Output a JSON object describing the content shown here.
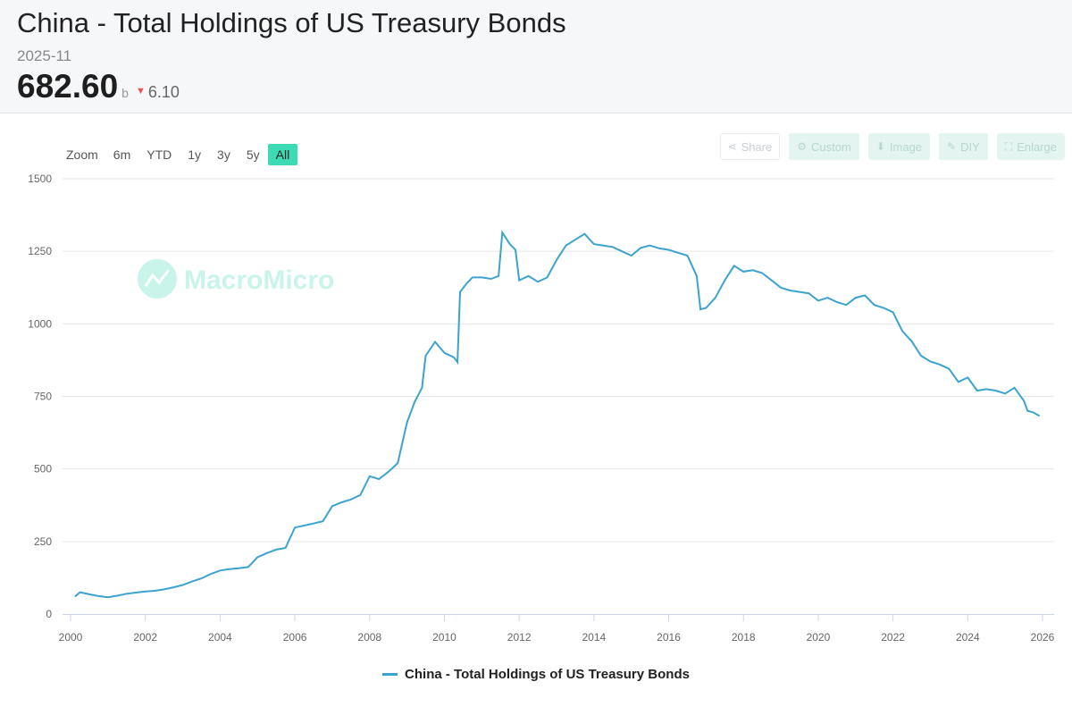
{
  "header": {
    "title": "China - Total Holdings of US Treasury Bonds",
    "date": "2025-11",
    "value": "682.60",
    "unit": "b",
    "change": "6.10",
    "change_direction": "down"
  },
  "zoom": {
    "label": "Zoom",
    "options": [
      "6m",
      "YTD",
      "1y",
      "3y",
      "5y",
      "All"
    ],
    "active": "All"
  },
  "toolbar": {
    "share": "Share",
    "custom": "Custom",
    "image": "Image",
    "diy": "DIY",
    "enlarge": "Enlarge"
  },
  "watermark": "MacroMicro",
  "colors": {
    "line": "#3ca3cf",
    "accent": "#3ddbb5",
    "down": "#e55353",
    "grid": "#e6e6e6"
  },
  "chart_data": {
    "type": "line",
    "title": "China - Total Holdings of US Treasury Bonds",
    "xlabel": "",
    "ylabel": "",
    "xlim": [
      2000,
      2026.2
    ],
    "ylim": [
      0,
      1500
    ],
    "yticks": [
      0,
      250,
      500,
      750,
      1000,
      1250,
      1500
    ],
    "xticks": [
      2000,
      2002,
      2004,
      2006,
      2008,
      2010,
      2012,
      2014,
      2016,
      2018,
      2020,
      2022,
      2024,
      2026
    ],
    "legend": "bottom-center",
    "series": [
      {
        "name": "China - Total Holdings of US Treasury Bonds",
        "points": [
          [
            2000.12,
            60
          ],
          [
            2000.25,
            75
          ],
          [
            2000.5,
            68
          ],
          [
            2000.75,
            62
          ],
          [
            2001.0,
            58
          ],
          [
            2001.25,
            63
          ],
          [
            2001.5,
            70
          ],
          [
            2001.75,
            74
          ],
          [
            2002.0,
            78
          ],
          [
            2002.25,
            80
          ],
          [
            2002.5,
            85
          ],
          [
            2002.75,
            92
          ],
          [
            2003.0,
            100
          ],
          [
            2003.25,
            112
          ],
          [
            2003.5,
            123
          ],
          [
            2003.75,
            138
          ],
          [
            2004.0,
            150
          ],
          [
            2004.25,
            155
          ],
          [
            2004.5,
            158
          ],
          [
            2004.75,
            162
          ],
          [
            2005.0,
            196
          ],
          [
            2005.25,
            210
          ],
          [
            2005.5,
            222
          ],
          [
            2005.75,
            228
          ],
          [
            2006.0,
            298
          ],
          [
            2006.25,
            305
          ],
          [
            2006.5,
            312
          ],
          [
            2006.75,
            320
          ],
          [
            2007.0,
            372
          ],
          [
            2007.25,
            385
          ],
          [
            2007.5,
            395
          ],
          [
            2007.75,
            410
          ],
          [
            2008.0,
            475
          ],
          [
            2008.25,
            465
          ],
          [
            2008.5,
            490
          ],
          [
            2008.75,
            520
          ],
          [
            2009.0,
            660
          ],
          [
            2009.2,
            730
          ],
          [
            2009.4,
            780
          ],
          [
            2009.5,
            890
          ],
          [
            2009.75,
            938
          ],
          [
            2010.0,
            900
          ],
          [
            2010.25,
            885
          ],
          [
            2010.35,
            868
          ],
          [
            2010.42,
            1110
          ],
          [
            2010.6,
            1140
          ],
          [
            2010.75,
            1160
          ],
          [
            2011.0,
            1160
          ],
          [
            2011.25,
            1155
          ],
          [
            2011.45,
            1165
          ],
          [
            2011.55,
            1315
          ],
          [
            2011.75,
            1275
          ],
          [
            2011.9,
            1255
          ],
          [
            2012.0,
            1150
          ],
          [
            2012.25,
            1165
          ],
          [
            2012.5,
            1145
          ],
          [
            2012.75,
            1160
          ],
          [
            2013.0,
            1220
          ],
          [
            2013.25,
            1270
          ],
          [
            2013.5,
            1290
          ],
          [
            2013.75,
            1310
          ],
          [
            2014.0,
            1275
          ],
          [
            2014.25,
            1270
          ],
          [
            2014.5,
            1265
          ],
          [
            2014.75,
            1250
          ],
          [
            2015.0,
            1235
          ],
          [
            2015.25,
            1262
          ],
          [
            2015.5,
            1270
          ],
          [
            2015.75,
            1260
          ],
          [
            2016.0,
            1255
          ],
          [
            2016.25,
            1245
          ],
          [
            2016.5,
            1235
          ],
          [
            2016.75,
            1165
          ],
          [
            2016.85,
            1050
          ],
          [
            2017.0,
            1055
          ],
          [
            2017.25,
            1090
          ],
          [
            2017.5,
            1150
          ],
          [
            2017.75,
            1200
          ],
          [
            2018.0,
            1180
          ],
          [
            2018.25,
            1185
          ],
          [
            2018.5,
            1175
          ],
          [
            2018.75,
            1150
          ],
          [
            2019.0,
            1125
          ],
          [
            2019.25,
            1115
          ],
          [
            2019.5,
            1110
          ],
          [
            2019.75,
            1105
          ],
          [
            2020.0,
            1080
          ],
          [
            2020.25,
            1090
          ],
          [
            2020.5,
            1075
          ],
          [
            2020.75,
            1065
          ],
          [
            2021.0,
            1090
          ],
          [
            2021.25,
            1098
          ],
          [
            2021.5,
            1065
          ],
          [
            2021.75,
            1055
          ],
          [
            2022.0,
            1040
          ],
          [
            2022.25,
            975
          ],
          [
            2022.5,
            940
          ],
          [
            2022.75,
            890
          ],
          [
            2023.0,
            870
          ],
          [
            2023.25,
            860
          ],
          [
            2023.5,
            845
          ],
          [
            2023.75,
            800
          ],
          [
            2024.0,
            815
          ],
          [
            2024.25,
            770
          ],
          [
            2024.5,
            775
          ],
          [
            2024.75,
            770
          ],
          [
            2025.0,
            760
          ],
          [
            2025.25,
            780
          ],
          [
            2025.5,
            735
          ],
          [
            2025.6,
            700
          ],
          [
            2025.75,
            695
          ],
          [
            2025.92,
            682.6
          ]
        ]
      }
    ]
  }
}
